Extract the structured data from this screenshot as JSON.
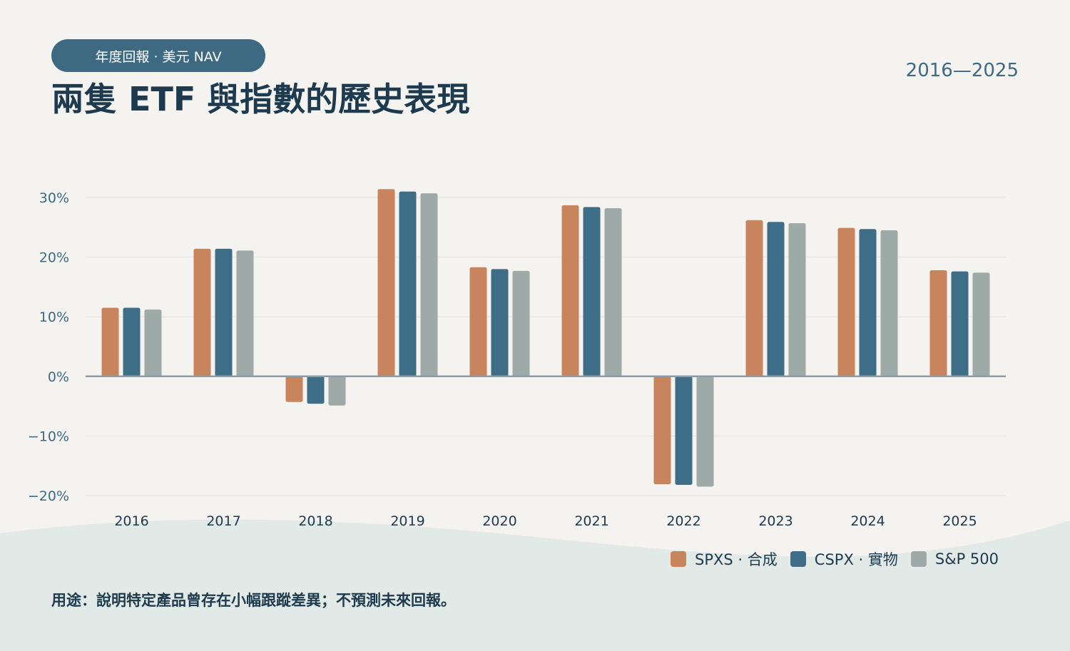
{
  "header": {
    "pill_label": "年度回報 · 美元 NAV",
    "title": "兩隻 ETF 與指數的歷史表現",
    "year_range": "2016—2025"
  },
  "colors": {
    "background": "#f4f3ef",
    "accent_dark": "#3d6a82",
    "spxs": "#c8845c",
    "cspx": "#3e6d87",
    "sp500": "#9eaaa7",
    "gridline": "#e2e2de",
    "zero_line": "#8b9ca6",
    "tick_text_y": "#3f6a83",
    "tick_text_x": "#1e3a4d"
  },
  "chart_data": {
    "type": "bar",
    "categories": [
      "2016",
      "2017",
      "2018",
      "2019",
      "2020",
      "2021",
      "2022",
      "2023",
      "2024",
      "2025"
    ],
    "series": [
      {
        "name": "SPXS · 合成",
        "color": "#c8845c",
        "values": [
          11.5,
          21.4,
          -4.3,
          31.4,
          18.3,
          28.7,
          -18.1,
          26.2,
          24.9,
          17.8
        ]
      },
      {
        "name": "CSPX · 實物",
        "color": "#3e6d87",
        "values": [
          11.5,
          21.4,
          -4.6,
          31.0,
          18.0,
          28.4,
          -18.2,
          25.9,
          24.7,
          17.6
        ]
      },
      {
        "name": "S&P 500",
        "color": "#9eaaa7",
        "values": [
          11.2,
          21.1,
          -4.9,
          30.7,
          17.7,
          28.2,
          -18.5,
          25.7,
          24.5,
          17.4
        ]
      }
    ],
    "yticks": [
      30,
      20,
      10,
      0,
      -10,
      -20
    ],
    "ytick_labels": [
      "30%",
      "20%",
      "10%",
      "0%",
      "−10%",
      "−20%"
    ],
    "ylim": [
      -20,
      30
    ],
    "grid": true,
    "legend_position": "bottom-right"
  },
  "legend": {
    "items": [
      {
        "label": "SPXS · 合成",
        "color": "#c8845c"
      },
      {
        "label": "CSPX · 實物",
        "color": "#3e6d87"
      },
      {
        "label": "S&P 500",
        "color": "#9eaaa7"
      }
    ]
  },
  "footnote": "用途：說明特定產品曾存在小幅跟蹤差異；不預測未來回報。"
}
